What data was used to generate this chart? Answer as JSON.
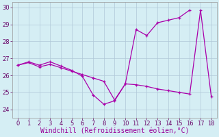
{
  "xlabel": "Windchill (Refroidissement éolien,°C)",
  "xlim": [
    -0.5,
    18.5
  ],
  "ylim": [
    23.5,
    30.3
  ],
  "xticks": [
    0,
    1,
    2,
    3,
    4,
    5,
    6,
    7,
    8,
    9,
    10,
    11,
    12,
    13,
    14,
    15,
    16,
    17,
    18
  ],
  "yticks": [
    24,
    25,
    26,
    27,
    28,
    29,
    30
  ],
  "line1_x": [
    0,
    1,
    2,
    3,
    4,
    5,
    6,
    7,
    8,
    9,
    10,
    11,
    12,
    13,
    14,
    15,
    16
  ],
  "line1_y": [
    26.6,
    26.8,
    26.6,
    26.8,
    26.55,
    26.3,
    25.95,
    24.85,
    24.3,
    24.5,
    25.5,
    28.7,
    28.35,
    29.1,
    29.25,
    29.4,
    29.85
  ],
  "line2_x": [
    0,
    1,
    2,
    3,
    4,
    5,
    6,
    7,
    8,
    9,
    10,
    11,
    12,
    13,
    14,
    15,
    16,
    17,
    18
  ],
  "line2_y": [
    26.6,
    26.75,
    26.5,
    26.65,
    26.45,
    26.25,
    26.05,
    25.85,
    25.65,
    24.55,
    25.5,
    25.45,
    25.35,
    25.2,
    25.1,
    25.0,
    24.9,
    29.85,
    24.75
  ],
  "line_color": "#aa00aa",
  "bg_color": "#d5eef4",
  "grid_color": "#b0c8d8",
  "tick_fontsize": 6,
  "label_fontsize": 7
}
